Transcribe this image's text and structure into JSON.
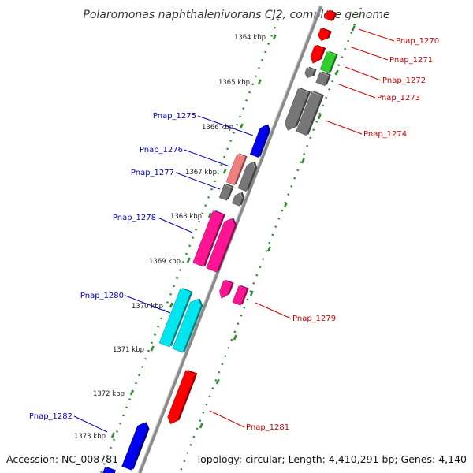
{
  "title": "Polaromonas naphthalenivorans CJ2, complete genome",
  "footer": {
    "accession": "Accession: NC_008781",
    "topology": "Topology: circular; Length: 4,410,291 bp; Genes: 4,140"
  },
  "ticks": [
    "1364 kbp",
    "1365 kbp",
    "1366 kbp",
    "1367 kbp",
    "1368 kbp",
    "1369 kbp",
    "1370 kbp",
    "1371 kbp",
    "1372 kbp",
    "1373 kbp"
  ],
  "colors": {
    "backbone": "#8a8a8a",
    "dots": "#2e8b2e",
    "reverse_label": "#cc0000",
    "forward_label": "#0000bb"
  },
  "genes": [
    {
      "id": "Pnap_1270",
      "strand": "reverse",
      "color": "#ff0000",
      "labeled": true
    },
    {
      "id": "Pnap_1271",
      "strand": "reverse",
      "color": "#ff0000",
      "labeled": true
    },
    {
      "id": "Pnap_1272",
      "strand": "reverse",
      "color": "#33cc33",
      "labeled": true
    },
    {
      "id": "Pnap_1273",
      "strand": "reverse",
      "color": "#777777",
      "labeled": true
    },
    {
      "id": "Pnap_1274",
      "strand": "reverse",
      "color": "#777777",
      "labeled": true
    },
    {
      "id": "Pnap_1275",
      "strand": "forward",
      "color": "#0000ee",
      "labeled": true
    },
    {
      "id": "Pnap_1276",
      "strand": "forward",
      "color": "#f08080",
      "labeled": true
    },
    {
      "id": "Pnap_1277",
      "strand": "forward",
      "color": "#777777",
      "labeled": true
    },
    {
      "id": "Pnap_1278",
      "strand": "forward",
      "color": "#ff1493",
      "labeled": true
    },
    {
      "id": "Pnap_1279",
      "strand": "reverse",
      "color": "#ff1493",
      "labeled": true
    },
    {
      "id": "Pnap_1280",
      "strand": "forward",
      "color": "#00e5ee",
      "labeled": true
    },
    {
      "id": "Pnap_1281",
      "strand": "reverse",
      "color": "#ff0000",
      "labeled": true
    },
    {
      "id": "Pnap_1282",
      "strand": "forward",
      "color": "#0000ee",
      "labeled": true
    }
  ]
}
